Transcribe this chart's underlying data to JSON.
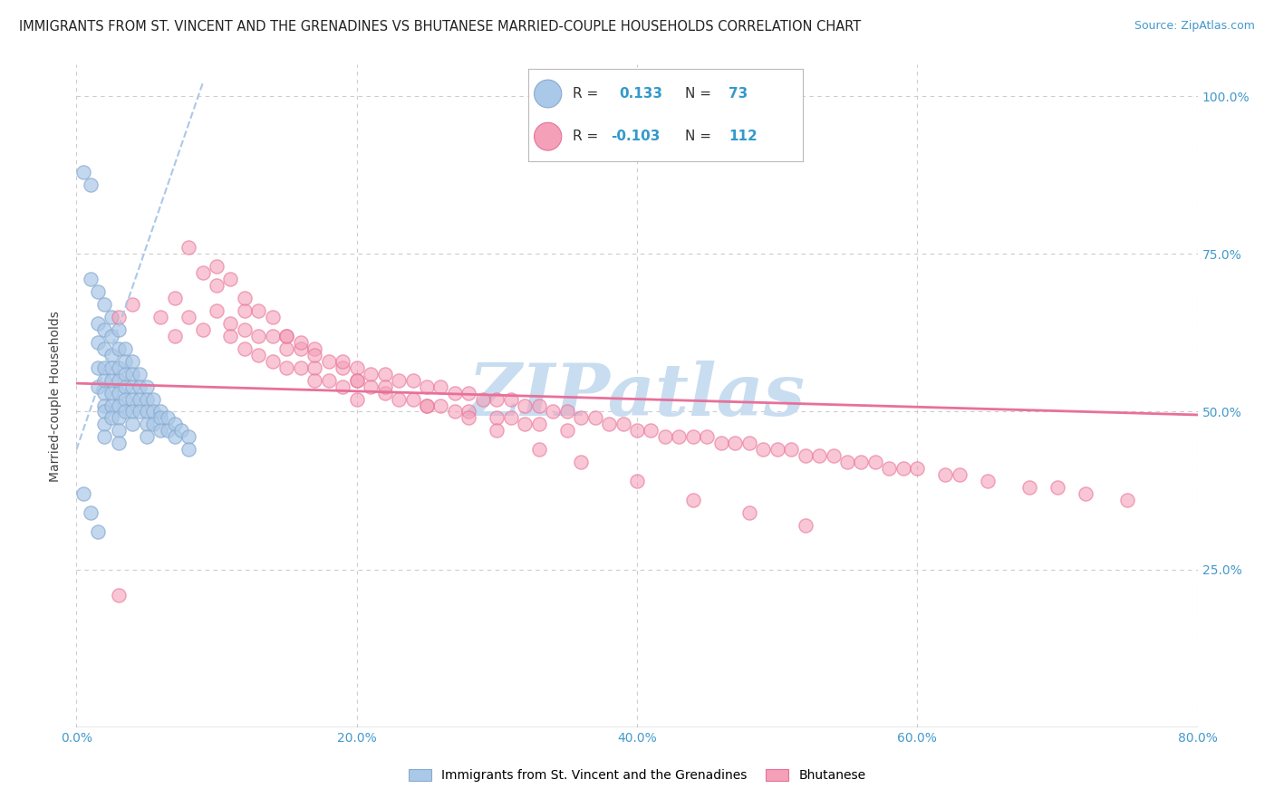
{
  "title": "IMMIGRANTS FROM ST. VINCENT AND THE GRENADINES VS BHUTANESE MARRIED-COUPLE HOUSEHOLDS CORRELATION CHART",
  "source": "Source: ZipAtlas.com",
  "ylabel": "Married-couple Households",
  "legend_blue_r": "0.133",
  "legend_blue_n": "73",
  "legend_pink_r": "-0.103",
  "legend_pink_n": "112",
  "legend_label_blue": "Immigrants from St. Vincent and the Grenadines",
  "legend_label_pink": "Bhutanese",
  "xmin": 0.0,
  "xmax": 0.8,
  "ymin": 0.0,
  "ymax": 1.05,
  "blue_scatter_x": [
    0.005,
    0.01,
    0.01,
    0.015,
    0.015,
    0.015,
    0.015,
    0.015,
    0.02,
    0.02,
    0.02,
    0.02,
    0.02,
    0.02,
    0.02,
    0.02,
    0.02,
    0.02,
    0.025,
    0.025,
    0.025,
    0.025,
    0.025,
    0.025,
    0.025,
    0.025,
    0.03,
    0.03,
    0.03,
    0.03,
    0.03,
    0.03,
    0.03,
    0.03,
    0.03,
    0.035,
    0.035,
    0.035,
    0.035,
    0.035,
    0.035,
    0.04,
    0.04,
    0.04,
    0.04,
    0.04,
    0.04,
    0.045,
    0.045,
    0.045,
    0.045,
    0.05,
    0.05,
    0.05,
    0.05,
    0.05,
    0.055,
    0.055,
    0.055,
    0.06,
    0.06,
    0.06,
    0.065,
    0.065,
    0.07,
    0.07,
    0.075,
    0.08,
    0.08,
    0.005,
    0.01,
    0.015
  ],
  "blue_scatter_y": [
    0.88,
    0.86,
    0.71,
    0.69,
    0.64,
    0.61,
    0.57,
    0.54,
    0.67,
    0.63,
    0.6,
    0.57,
    0.55,
    0.53,
    0.51,
    0.5,
    0.48,
    0.46,
    0.65,
    0.62,
    0.59,
    0.57,
    0.55,
    0.53,
    0.51,
    0.49,
    0.63,
    0.6,
    0.57,
    0.55,
    0.53,
    0.51,
    0.49,
    0.47,
    0.45,
    0.6,
    0.58,
    0.56,
    0.54,
    0.52,
    0.5,
    0.58,
    0.56,
    0.54,
    0.52,
    0.5,
    0.48,
    0.56,
    0.54,
    0.52,
    0.5,
    0.54,
    0.52,
    0.5,
    0.48,
    0.46,
    0.52,
    0.5,
    0.48,
    0.5,
    0.49,
    0.47,
    0.49,
    0.47,
    0.48,
    0.46,
    0.47,
    0.46,
    0.44,
    0.37,
    0.34,
    0.31
  ],
  "pink_scatter_x": [
    0.03,
    0.04,
    0.06,
    0.07,
    0.07,
    0.08,
    0.09,
    0.1,
    0.1,
    0.11,
    0.11,
    0.12,
    0.12,
    0.12,
    0.13,
    0.13,
    0.14,
    0.14,
    0.15,
    0.15,
    0.15,
    0.16,
    0.16,
    0.17,
    0.17,
    0.17,
    0.18,
    0.18,
    0.19,
    0.19,
    0.2,
    0.2,
    0.2,
    0.21,
    0.21,
    0.22,
    0.22,
    0.23,
    0.23,
    0.24,
    0.24,
    0.25,
    0.25,
    0.26,
    0.26,
    0.27,
    0.27,
    0.28,
    0.28,
    0.29,
    0.3,
    0.3,
    0.31,
    0.31,
    0.32,
    0.32,
    0.33,
    0.33,
    0.34,
    0.35,
    0.35,
    0.36,
    0.37,
    0.38,
    0.39,
    0.4,
    0.41,
    0.42,
    0.43,
    0.44,
    0.45,
    0.46,
    0.47,
    0.48,
    0.49,
    0.5,
    0.51,
    0.52,
    0.53,
    0.54,
    0.55,
    0.56,
    0.57,
    0.58,
    0.59,
    0.6,
    0.62,
    0.63,
    0.65,
    0.68,
    0.7,
    0.72,
    0.75,
    0.08,
    0.09,
    0.1,
    0.11,
    0.12,
    0.13,
    0.14,
    0.15,
    0.16,
    0.17,
    0.19,
    0.2,
    0.22,
    0.25,
    0.28,
    0.3,
    0.33,
    0.36,
    0.4,
    0.44,
    0.48,
    0.52,
    0.03
  ],
  "pink_scatter_y": [
    0.65,
    0.67,
    0.65,
    0.62,
    0.68,
    0.65,
    0.63,
    0.7,
    0.66,
    0.64,
    0.62,
    0.66,
    0.63,
    0.6,
    0.62,
    0.59,
    0.62,
    0.58,
    0.62,
    0.6,
    0.57,
    0.6,
    0.57,
    0.6,
    0.57,
    0.55,
    0.58,
    0.55,
    0.57,
    0.54,
    0.57,
    0.55,
    0.52,
    0.56,
    0.54,
    0.56,
    0.53,
    0.55,
    0.52,
    0.55,
    0.52,
    0.54,
    0.51,
    0.54,
    0.51,
    0.53,
    0.5,
    0.53,
    0.5,
    0.52,
    0.52,
    0.49,
    0.52,
    0.49,
    0.51,
    0.48,
    0.51,
    0.48,
    0.5,
    0.5,
    0.47,
    0.49,
    0.49,
    0.48,
    0.48,
    0.47,
    0.47,
    0.46,
    0.46,
    0.46,
    0.46,
    0.45,
    0.45,
    0.45,
    0.44,
    0.44,
    0.44,
    0.43,
    0.43,
    0.43,
    0.42,
    0.42,
    0.42,
    0.41,
    0.41,
    0.41,
    0.4,
    0.4,
    0.39,
    0.38,
    0.38,
    0.37,
    0.36,
    0.76,
    0.72,
    0.73,
    0.71,
    0.68,
    0.66,
    0.65,
    0.62,
    0.61,
    0.59,
    0.58,
    0.55,
    0.54,
    0.51,
    0.49,
    0.47,
    0.44,
    0.42,
    0.39,
    0.36,
    0.34,
    0.32,
    0.21
  ],
  "blue_line_x": [
    0.0,
    0.09
  ],
  "blue_line_y": [
    0.44,
    1.02
  ],
  "pink_line_x": [
    0.0,
    0.8
  ],
  "pink_line_y": [
    0.545,
    0.495
  ],
  "blue_color": "#aac8e8",
  "pink_color": "#f4a0b8",
  "blue_edge_color": "#88aad0",
  "pink_edge_color": "#e8709a",
  "blue_line_color": "#aac8e8",
  "pink_line_color": "#e8709a",
  "grid_color": "#cccccc",
  "title_color": "#222222",
  "axis_label_color": "#4499cc",
  "watermark_color": "#c8ddf0",
  "watermark_text": "ZIPatlas"
}
